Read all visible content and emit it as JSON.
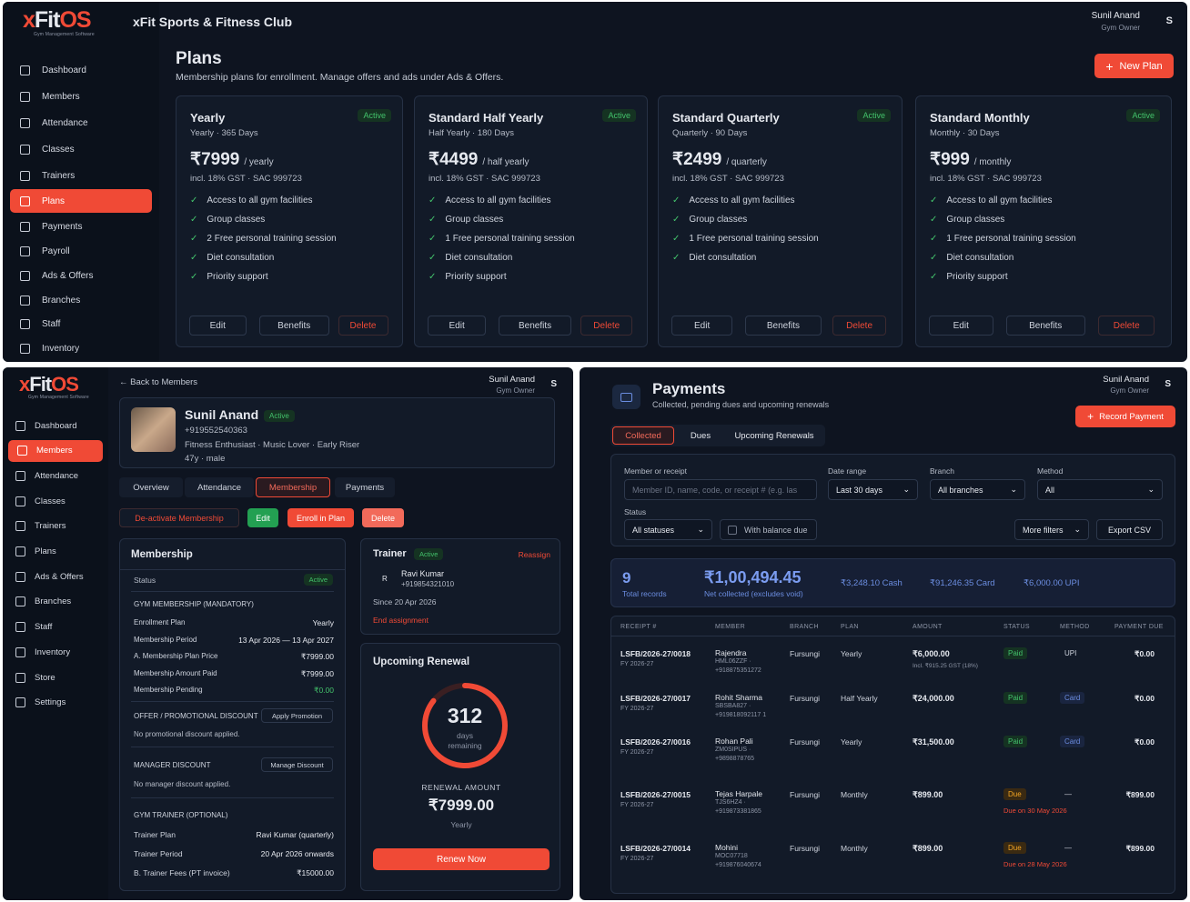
{
  "plans_screen": {
    "logo": {
      "text_x": "x",
      "text_fit": "Fit",
      "text_os": "OS",
      "tag": "Gym Management Software"
    },
    "club_name": "xFit Sports & Fitness Club",
    "user": {
      "name": "Sunil Anand",
      "role": "Gym Owner",
      "initial": "S"
    },
    "nav": [
      "Dashboard",
      "Members",
      "Attendance",
      "Classes",
      "Trainers",
      "Plans",
      "Payments",
      "Payroll",
      "Ads & Offers",
      "Branches",
      "Staff",
      "Inventory"
    ],
    "title": "Plans",
    "subtitle": "Membership plans for enrollment. Manage offers and ads under Ads & Offers.",
    "new_plan": "New Plan",
    "plans": [
      {
        "name": "Yearly",
        "meta": "Yearly · 365 Days",
        "price": "₹7999",
        "period": "/ yearly",
        "tax": "incl. 18% GST · SAC 999723",
        "status": "Active",
        "features": [
          "Access to all gym facilities",
          "Group classes",
          "2 Free personal training session",
          "Diet consultation",
          "Priority support"
        ]
      },
      {
        "name": "Standard Half Yearly",
        "meta": "Half Yearly · 180 Days",
        "price": "₹4499",
        "period": "/ half yearly",
        "tax": "incl. 18% GST · SAC 999723",
        "status": "Active",
        "features": [
          "Access to all gym facilities",
          "Group classes",
          "1 Free personal training session",
          "Diet consultation",
          "Priority support"
        ]
      },
      {
        "name": "Standard Quarterly",
        "meta": "Quarterly · 90 Days",
        "price": "₹2499",
        "period": "/ quarterly",
        "tax": "incl. 18% GST · SAC 999723",
        "status": "Active",
        "features": [
          "Access to all gym facilities",
          "Group classes",
          "1 Free personal training session",
          "Diet consultation"
        ]
      },
      {
        "name": "Standard Monthly",
        "meta": "Monthly · 30 Days",
        "price": "₹999",
        "period": "/ monthly",
        "tax": "incl. 18% GST · SAC 999723",
        "status": "Active",
        "features": [
          "Access to all gym facilities",
          "Group classes",
          "1 Free personal training session",
          "Diet consultation",
          "Priority support"
        ]
      }
    ],
    "card_buttons": {
      "edit": "Edit",
      "benefits": "Benefits",
      "delete": "Delete"
    }
  },
  "member_screen": {
    "logo": {
      "text_x": "x",
      "text_fit": "Fit",
      "text_os": "OS",
      "tag": "Gym Management Software"
    },
    "back": "Back to Members",
    "user": {
      "name": "Sunil Anand",
      "role": "Gym Owner",
      "initial": "S"
    },
    "nav": [
      "Dashboard",
      "Members",
      "Attendance",
      "Classes",
      "Trainers",
      "Plans",
      "Ads & Offers",
      "Branches",
      "Staff",
      "Inventory",
      "Store",
      "Settings"
    ],
    "member": {
      "name": "Sunil Anand",
      "status": "Active",
      "phone": "+919552540363",
      "tags": "Fitness Enthusiast · Music Lover · Early Riser",
      "age": "47y · male"
    },
    "tabs": [
      "Overview",
      "Attendance",
      "Membership",
      "Payments"
    ],
    "actions": {
      "deactivate": "De-activate Membership",
      "edit": "Edit",
      "enroll": "Enroll in Plan",
      "delete": "Delete"
    },
    "membership": {
      "title": "Membership",
      "status_label": "Status",
      "status": "Active",
      "section1": "GYM MEMBERSHIP (MANDATORY)",
      "rows": [
        [
          "Enrollment Plan",
          "Yearly"
        ],
        [
          "Membership Period",
          "13 Apr 2026 — 13 Apr 2027"
        ],
        [
          "A. Membership Plan Price",
          "₹7999.00"
        ],
        [
          "Membership Amount Paid",
          "₹7999.00"
        ],
        [
          "Membership Pending",
          "₹0.00"
        ]
      ],
      "offer_title": "OFFER / PROMOTIONAL DISCOUNT",
      "apply_promo": "Apply Promotion",
      "offer_note": "No promotional discount applied.",
      "manager_title": "MANAGER DISCOUNT",
      "manage_discount": "Manage Discount",
      "manager_note": "No manager discount applied.",
      "trainer_title": "GYM TRAINER (OPTIONAL)",
      "trainer_rows": [
        [
          "Trainer Plan",
          "Ravi Kumar (quarterly)"
        ],
        [
          "Trainer Period",
          "20 Apr 2026 onwards"
        ],
        [
          "B. Trainer Fees (PT invoice)",
          "₹15000.00"
        ]
      ]
    },
    "trainer": {
      "title": "Trainer",
      "status": "Active",
      "reassign": "Reassign",
      "initial": "R",
      "name": "Ravi Kumar",
      "phone": "+919854321010",
      "since": "Since 20 Apr 2026",
      "end": "End assignment"
    },
    "renewal": {
      "title": "Upcoming Renewal",
      "days": "312",
      "days_label": "days",
      "remaining": "remaining",
      "progress": 0.855,
      "amount_label": "RENEWAL AMOUNT",
      "amount": "₹7999.00",
      "period": "Yearly",
      "button": "Renew Now"
    }
  },
  "payments_screen": {
    "title": "Payments",
    "subtitle": "Collected, pending dues and upcoming renewals",
    "user": {
      "name": "Sunil Anand",
      "role": "Gym Owner",
      "initial": "S"
    },
    "record_payment": "Record Payment",
    "tabs": [
      "Collected",
      "Dues",
      "Upcoming Renewals"
    ],
    "filters": {
      "member_label": "Member or receipt",
      "member_placeholder": "Member ID, name, code, or receipt # (e.g. las",
      "date_label": "Date range",
      "date_value": "Last 30 days",
      "branch_label": "Branch",
      "branch_value": "All branches",
      "method_label": "Method",
      "method_value": "All",
      "status_label": "Status",
      "status_value": "All statuses",
      "balance_due": "With balance due",
      "more_filters": "More filters",
      "export": "Export CSV"
    },
    "summary": {
      "records": "9",
      "records_label": "Total records",
      "net": "₹1,00,494.45",
      "net_label": "Net collected (excludes void)",
      "cash": "₹3,248.10 Cash",
      "card": "₹91,246.35 Card",
      "upi": "₹6,000.00 UPI"
    },
    "columns": [
      "RECEIPT #",
      "MEMBER",
      "BRANCH",
      "PLAN",
      "AMOUNT",
      "STATUS",
      "METHOD",
      "PAYMENT DUE"
    ],
    "rows": [
      {
        "receipt": "LSFB/2026-27/0018",
        "fy": "FY 2026-27",
        "member": "Rajendra",
        "code": "HML06ZZF ·",
        "phone": "+918875351272",
        "branch": "Fursungi",
        "plan": "Yearly",
        "amount": "₹6,000.00",
        "note": "Incl. ₹915.25 GST (18%)",
        "status": "Paid",
        "method": "UPI",
        "due": "₹0.00",
        "due_note": ""
      },
      {
        "receipt": "LSFB/2026-27/0017",
        "fy": "FY 2026-27",
        "member": "Rohit Sharma",
        "code": "SBSBA827 ·",
        "phone": "+919818092117 1",
        "branch": "Fursungi",
        "plan": "Half Yearly",
        "amount": "₹24,000.00",
        "note": "",
        "status": "Paid",
        "method": "Card",
        "due": "₹0.00",
        "due_note": ""
      },
      {
        "receipt": "LSFB/2026-27/0016",
        "fy": "FY 2026-27",
        "member": "Rohan Pali",
        "code": "ZM0SIPUS ·",
        "phone": "+9898878765",
        "branch": "Fursungi",
        "plan": "Yearly",
        "amount": "₹31,500.00",
        "note": "",
        "status": "Paid",
        "method": "Card",
        "due": "₹0.00",
        "due_note": ""
      },
      {
        "receipt": "LSFB/2026-27/0015",
        "fy": "FY 2026-27",
        "member": "Tejas Harpale",
        "code": "TJS6HZ4 ·",
        "phone": "+919873381865",
        "branch": "Fursungi",
        "plan": "Monthly",
        "amount": "₹899.00",
        "note": "",
        "status": "Due",
        "method": "—",
        "due": "₹899.00",
        "due_note": "Due on 30 May 2026"
      },
      {
        "receipt": "LSFB/2026-27/0014",
        "fy": "FY 2026-27",
        "member": "Mohini",
        "code": "MOC07718",
        "phone": "+919876040674",
        "branch": "Fursungi",
        "plan": "Monthly",
        "amount": "₹899.00",
        "note": "",
        "status": "Due",
        "method": "—",
        "due": "₹899.00",
        "due_note": "Due on 28 May 2026"
      }
    ]
  }
}
